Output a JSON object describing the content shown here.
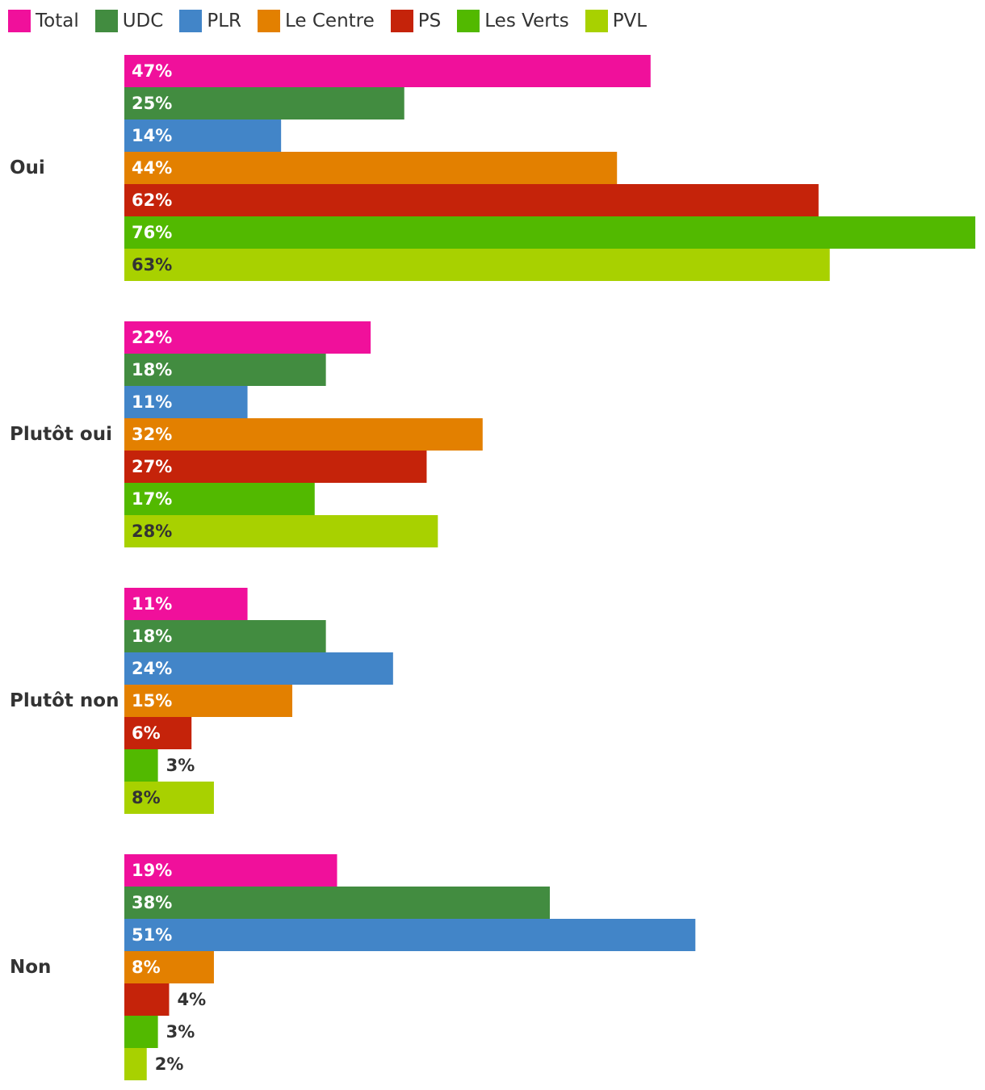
{
  "chart_data": {
    "type": "bar",
    "orientation": "horizontal",
    "categories": [
      "Oui",
      "Plutôt oui",
      "Plutôt non",
      "Non"
    ],
    "series": [
      {
        "name": "Total",
        "color": "#f0109b",
        "values": [
          47,
          22,
          11,
          19
        ]
      },
      {
        "name": "UDC",
        "color": "#428c40",
        "values": [
          25,
          18,
          18,
          38
        ]
      },
      {
        "name": "PLR",
        "color": "#4285c8",
        "values": [
          14,
          11,
          24,
          51
        ]
      },
      {
        "name": "Le Centre",
        "color": "#e38000",
        "values": [
          44,
          32,
          15,
          8
        ]
      },
      {
        "name": "PS",
        "color": "#c5230a",
        "values": [
          62,
          27,
          6,
          4
        ]
      },
      {
        "name": "Les Verts",
        "color": "#52b900",
        "values": [
          76,
          17,
          3,
          3
        ]
      },
      {
        "name": "PVL",
        "color": "#a8d100",
        "values": [
          63,
          28,
          8,
          2
        ]
      }
    ],
    "value_suffix": "%",
    "xlim": [
      0,
      76
    ],
    "legend_position": "top-left",
    "grid": false,
    "title": "",
    "xlabel": "",
    "ylabel": ""
  }
}
